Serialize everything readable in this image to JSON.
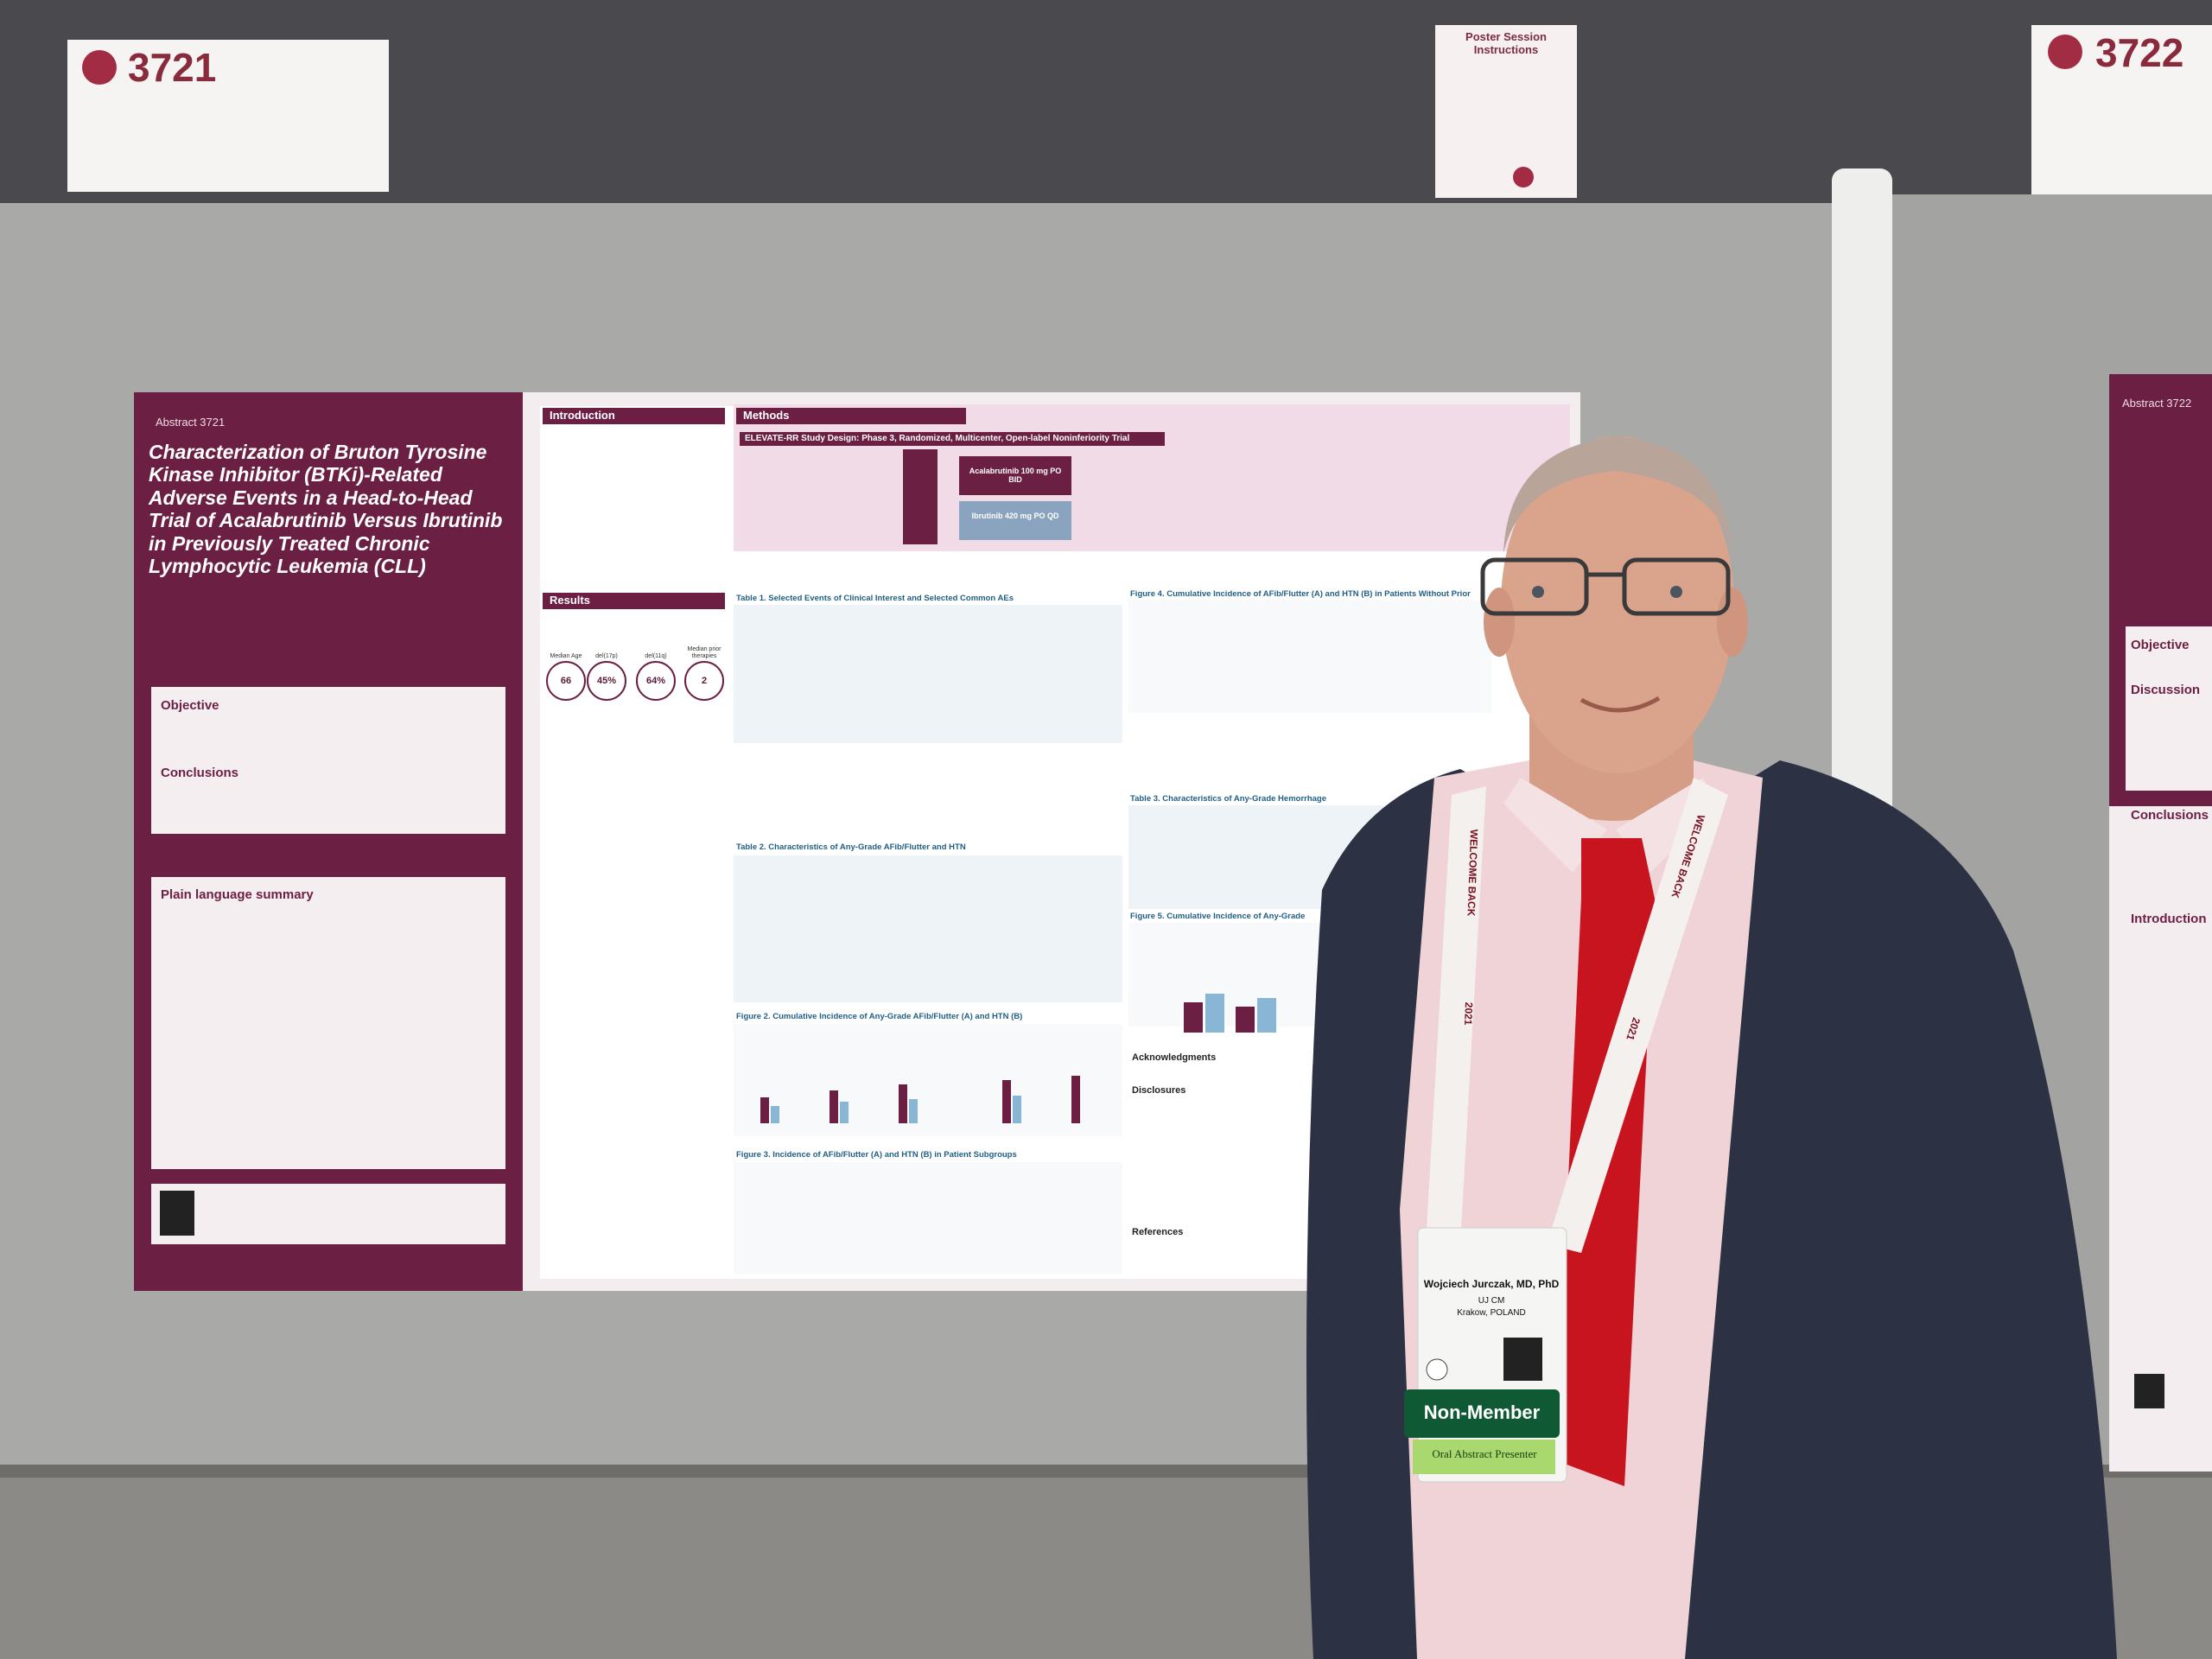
{
  "signs": [
    {
      "number": "3721"
    },
    {
      "number": "3722"
    }
  ],
  "instructions": {
    "title": "Poster Session Instructions"
  },
  "poster": {
    "abstract": "Abstract 3721",
    "title": "Characterization of Bruton Tyrosine Kinase Inhibitor (BTKi)-Related Adverse Events in a Head-to-Head Trial of Acalabrutinib Versus Ibrutinib in Previously Treated Chronic Lymphocytic Leukemia (CLL)",
    "sections": [
      "Objective",
      "Conclusions",
      "Plain language summary",
      "Introduction",
      "Methods",
      "Results",
      "Acknowledgments",
      "Disclosures",
      "References"
    ],
    "study_design": "ELEVATE-RR Study Design: Phase 3, Randomized, Multicenter, Open-label Noninferiority Trial",
    "arms": [
      "Acalabrutinib 100 mg PO BID",
      "Ibrutinib 420 mg PO QD"
    ],
    "baseline": [
      {
        "label": "Median Age",
        "value": "66"
      },
      {
        "label": "del(17p)",
        "value": "45%"
      },
      {
        "label": "del(11q)",
        "value": "64%"
      },
      {
        "label": "Median prior therapies",
        "value": "2"
      }
    ],
    "figures": [
      "Table 1. Selected Events of Clinical Interest and Selected Common AEs",
      "Table 2. Characteristics of Any-Grade AFib/Flutter and HTN",
      "Figure 2. Cumulative Incidence of Any-Grade AFib/Flutter (A) and HTN (B)",
      "Figure 3. Incidence of AFib/Flutter (A) and HTN (B) in Patient Subgroups",
      "Figure 4. Cumulative Incidence of AFib/Flutter (A) and HTN (B) in Patients Without Prior",
      "Table 3. Characteristics of Any-Grade Hemorrhage",
      "Figure 5. Cumulative Incidence of Any-Grade"
    ]
  },
  "right_poster": {
    "abstract": "Abstract 3722",
    "sections": [
      "Objective",
      "Discussion",
      "Conclusions",
      "Introduction"
    ]
  },
  "badge": {
    "name": "Wojciech Jurczak, MD, PhD",
    "affiliation": "UJ CM",
    "location": "Krakow, POLAND",
    "status": "Non-Member",
    "ribbon": "Oral Abstract Presenter"
  },
  "lanyard": {
    "text": "WELCOME BACK",
    "year": "2021"
  }
}
